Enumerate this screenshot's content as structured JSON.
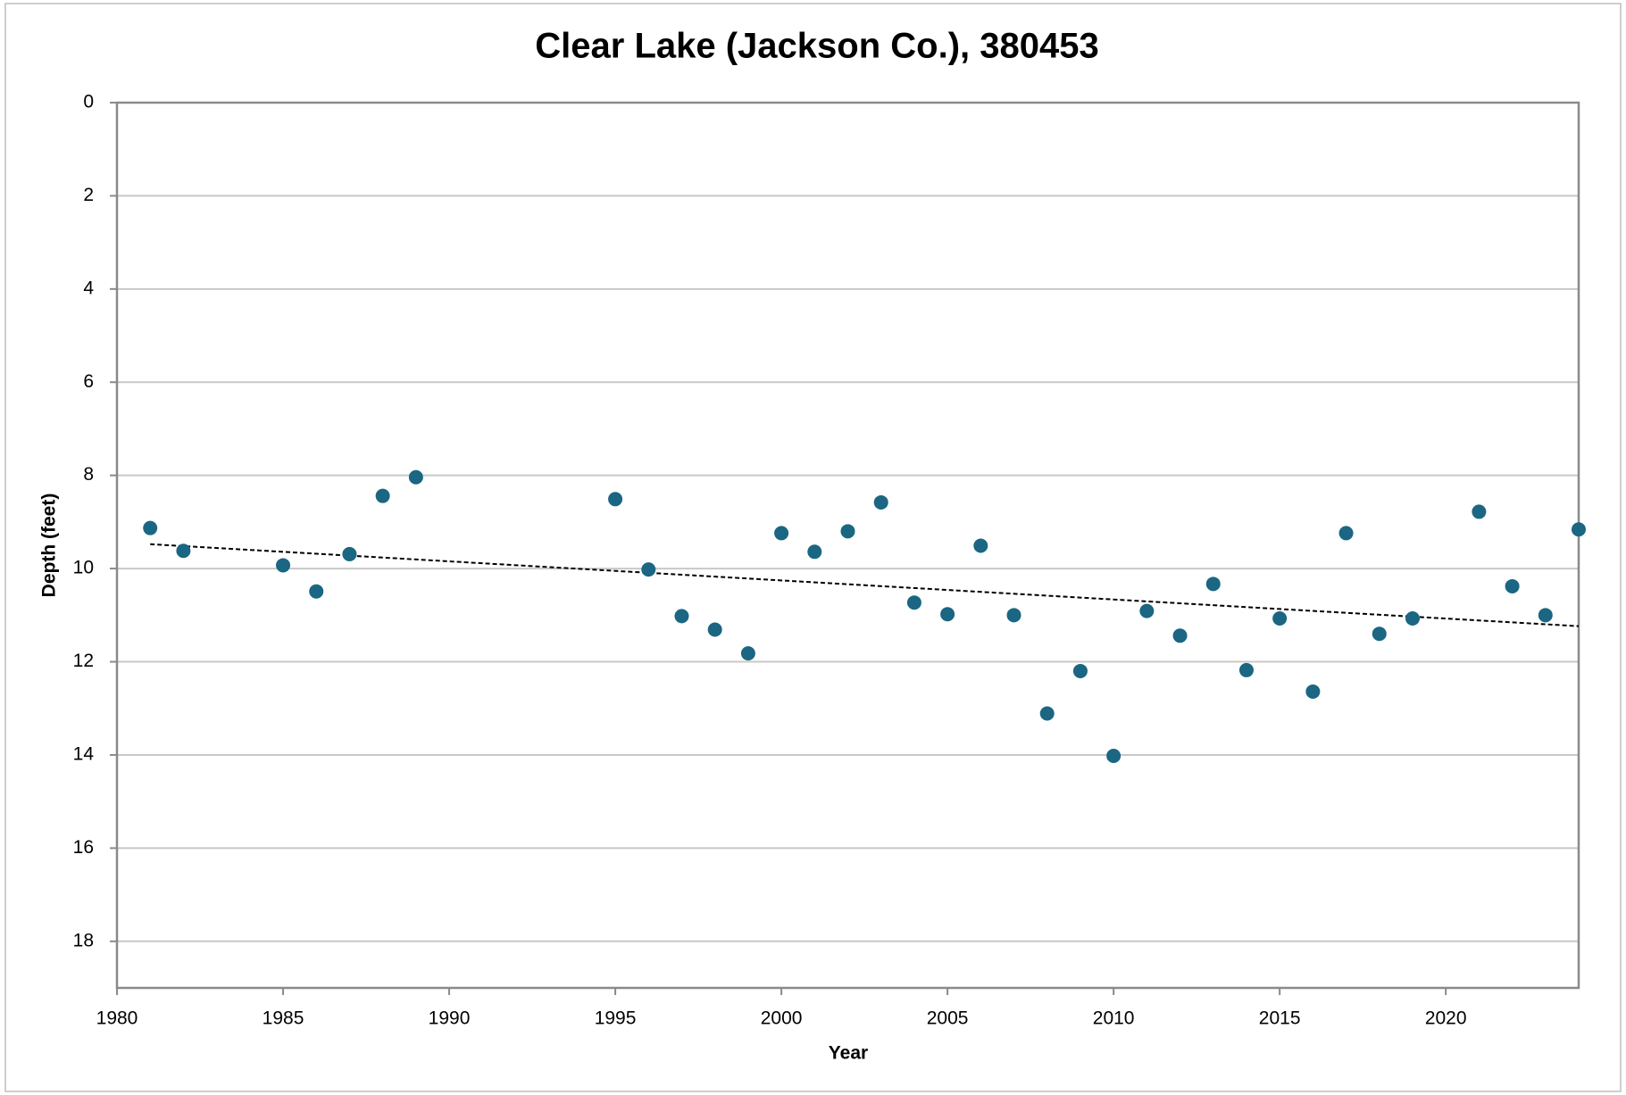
{
  "chart_data": {
    "type": "scatter",
    "title": "Clear Lake (Jackson Co.), 380453",
    "x_label": "Year",
    "y_label": "Depth (feet)",
    "series": [
      {
        "name": "Depth",
        "color": "#1a6683",
        "x": [
          1981,
          1982,
          1985,
          1986,
          1987,
          1988,
          1989,
          1995,
          1996,
          1997,
          1998,
          1999,
          2000,
          2001,
          2002,
          2003,
          2004,
          2005,
          2006,
          2007,
          2008,
          2009,
          2010,
          2011,
          2012,
          2013,
          2014,
          2015,
          2016,
          2017,
          2018,
          2019,
          2021,
          2022,
          2023,
          2024
        ],
        "values": [
          9.13,
          9.62,
          9.93,
          10.49,
          9.69,
          8.44,
          8.04,
          8.51,
          10.02,
          11.02,
          11.31,
          11.82,
          9.24,
          9.64,
          9.2,
          8.58,
          10.73,
          10.98,
          9.51,
          11.0,
          13.11,
          12.2,
          14.02,
          10.91,
          11.44,
          10.33,
          12.18,
          11.07,
          12.64,
          9.24,
          11.4,
          11.07,
          8.78,
          10.38,
          11.0,
          9.16
        ]
      }
    ],
    "trendline": true,
    "xlim": [
      1980,
      2024
    ],
    "xticks": [
      1980,
      1985,
      1990,
      1995,
      2000,
      2005,
      2010,
      2015,
      2020
    ],
    "ylim": [
      0,
      19
    ],
    "yticks": [
      0,
      2,
      4,
      6,
      8,
      10,
      12,
      14,
      16,
      18
    ],
    "y_inverted": true,
    "grid": true
  }
}
